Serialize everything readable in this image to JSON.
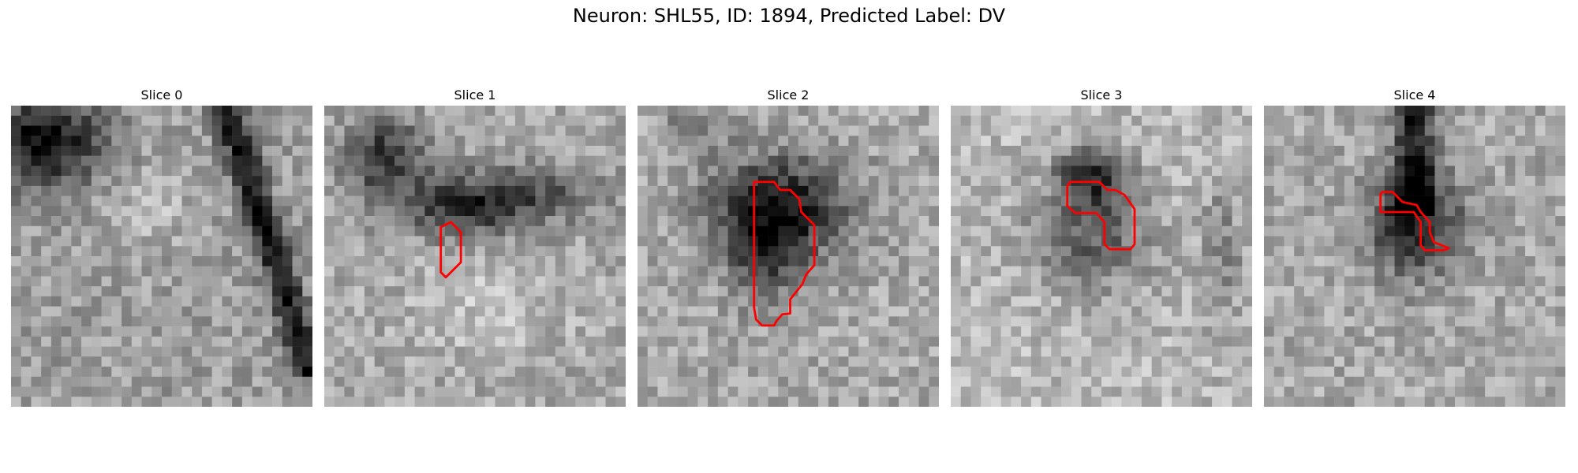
{
  "figure": {
    "title": "Neuron: SHL55, ID: 1894, Predicted Label: DV"
  },
  "slices": [
    {
      "label": "Slice 0"
    },
    {
      "label": "Slice 1"
    },
    {
      "label": "Slice 2"
    },
    {
      "label": "Slice 3"
    },
    {
      "label": "Slice 4"
    }
  ],
  "style": {
    "contour_color": "#ff0000",
    "colormap": "grayscale"
  }
}
